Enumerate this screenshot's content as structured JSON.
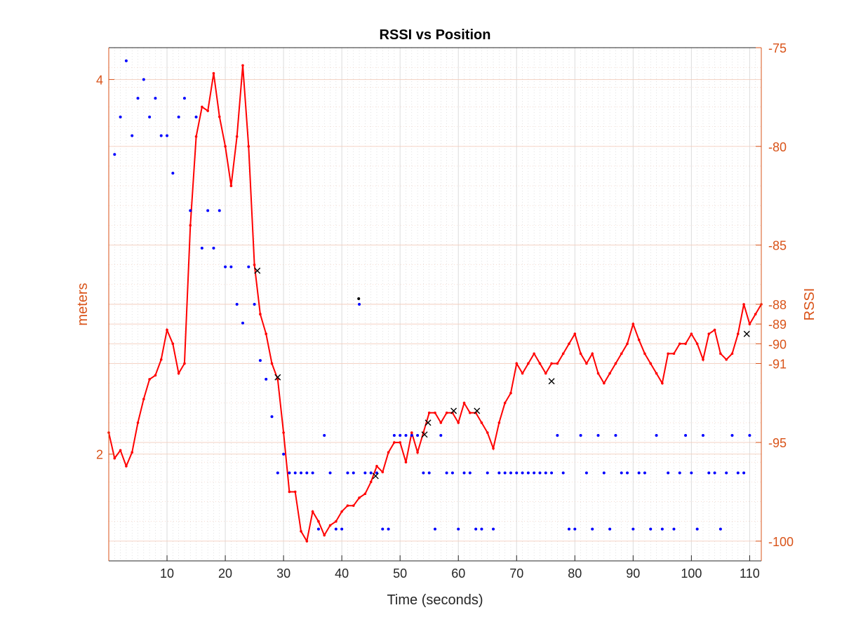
{
  "chart_data": {
    "type": "line",
    "title": "RSSI vs Position",
    "xlabel": "Time (seconds)",
    "ylabel_left": "meters",
    "ylabel_right": "RSSI",
    "xlim": [
      0,
      112
    ],
    "x_ticks": [
      "10",
      "20",
      "30",
      "40",
      "50",
      "60",
      "70",
      "80",
      "90",
      "100",
      "110"
    ],
    "y_left_lim": [
      1.43,
      4.17
    ],
    "y_left_ticks": [
      "2",
      "4"
    ],
    "y_right_lim": [
      -101,
      -75
    ],
    "y_right_ticks": [
      "-75",
      "-80",
      "-85",
      "-88",
      "-89",
      "-90",
      "-91",
      "-95",
      "-100"
    ],
    "grid": true,
    "colors": {
      "axis_right": "#d95319",
      "axis_left": "#d95319",
      "rssi_line": "#ff0000",
      "position_dots": "#0000ff",
      "markers": "#000000"
    },
    "series": [
      {
        "axis": "right",
        "style": "line-dots",
        "x": [
          0,
          1,
          2,
          3,
          4,
          5,
          6,
          7,
          8,
          9,
          10,
          11,
          12,
          13,
          14,
          15,
          16,
          17,
          18,
          19,
          20,
          21,
          22,
          23,
          24,
          25,
          26,
          27,
          28,
          29,
          30,
          31,
          32,
          33,
          34,
          35,
          36,
          37,
          38,
          39,
          40,
          41,
          42,
          43,
          44,
          45,
          46,
          47,
          48,
          49,
          50,
          51,
          52,
          53,
          54,
          55,
          56,
          57,
          58,
          59,
          60,
          61,
          62,
          63,
          64,
          65,
          66,
          67,
          68,
          69,
          70,
          71,
          72,
          73,
          74,
          75,
          76,
          77,
          78,
          79,
          80,
          81,
          82,
          83,
          84,
          85,
          86,
          87,
          88,
          89,
          90,
          91,
          92,
          93,
          94,
          95,
          96,
          97,
          98,
          99,
          100,
          101,
          102,
          103,
          104,
          105,
          106,
          107,
          108,
          109,
          110,
          111,
          112
        ],
        "values": [
          -94.5,
          -95.8,
          -95.4,
          -96.2,
          -95.5,
          -94.0,
          -92.8,
          -91.8,
          -91.6,
          -90.8,
          -89.3,
          -90.0,
          -91.5,
          -91.0,
          -84.0,
          -79.5,
          -78.0,
          -78.2,
          -76.3,
          -78.5,
          -80.0,
          -82.0,
          -79.5,
          -75.9,
          -80.0,
          -86.0,
          -88.5,
          -89.5,
          -91.0,
          -91.8,
          -94.5,
          -97.5,
          -97.5,
          -99.5,
          -100.0,
          -98.5,
          -99.0,
          -99.7,
          -99.2,
          -99.0,
          -98.5,
          -98.2,
          -98.2,
          -97.8,
          -97.6,
          -97.0,
          -96.2,
          -96.5,
          -95.5,
          -95.0,
          -95.0,
          -96.0,
          -94.5,
          -95.5,
          -94.5,
          -93.5,
          -93.5,
          -94.0,
          -93.5,
          -93.5,
          -94.0,
          -93.0,
          -93.5,
          -93.5,
          -94.0,
          -94.5,
          -95.3,
          -94.0,
          -93.0,
          -92.5,
          -91.0,
          -91.5,
          -91.0,
          -90.5,
          -91.0,
          -91.5,
          -91.0,
          -91.0,
          -90.5,
          -90.0,
          -89.5,
          -90.5,
          -91.0,
          -90.5,
          -91.5,
          -92.0,
          -91.5,
          -91.0,
          -90.5,
          -90.0,
          -89.0,
          -89.8,
          -90.5,
          -91.0,
          -91.5,
          -92.0,
          -90.5,
          -90.5,
          -90.0,
          -90.0,
          -89.5,
          -90.0,
          -90.8,
          -89.5,
          -89.3,
          -90.5,
          -90.8,
          -90.5,
          -89.5,
          -88.0,
          -89.0,
          -88.5,
          -88.0
        ]
      },
      {
        "axis": "left",
        "style": "dots",
        "x": [
          1,
          2,
          3,
          4,
          5,
          6,
          7,
          8,
          9,
          10,
          11,
          12,
          13,
          14,
          15,
          16,
          17,
          18,
          19,
          20,
          21,
          22,
          23,
          24,
          25,
          26,
          27,
          28,
          29,
          30,
          31,
          32,
          33,
          34,
          35,
          36,
          37,
          38,
          39,
          40,
          41,
          42,
          43,
          44,
          45,
          46,
          47,
          48,
          49,
          50,
          51,
          52,
          53,
          54,
          55,
          56,
          57,
          58,
          59,
          60,
          61,
          62,
          63,
          64,
          65,
          66,
          67,
          68,
          69,
          70,
          71,
          72,
          73,
          74,
          75,
          76,
          77,
          78,
          79,
          80,
          81,
          82,
          83,
          84,
          85,
          86,
          87,
          88,
          89,
          90,
          91,
          92,
          93,
          94,
          95,
          96,
          97,
          98,
          99,
          100,
          101,
          102,
          103,
          104,
          105,
          106,
          107,
          108,
          109,
          110
        ],
        "values": [
          3.6,
          3.8,
          4.1,
          3.7,
          3.9,
          4.0,
          3.8,
          3.9,
          3.7,
          3.7,
          3.5,
          3.8,
          3.9,
          3.3,
          3.8,
          3.1,
          3.3,
          3.1,
          3.3,
          3.0,
          3.0,
          2.8,
          2.7,
          3.0,
          2.8,
          2.5,
          2.4,
          2.2,
          1.9,
          2.0,
          1.9,
          1.9,
          1.9,
          1.9,
          1.9,
          1.6,
          2.1,
          1.9,
          1.6,
          1.6,
          1.9,
          1.9,
          2.8,
          1.9,
          1.9,
          1.9,
          1.6,
          1.6,
          2.1,
          2.1,
          2.1,
          2.1,
          2.1,
          1.9,
          1.9,
          1.6,
          2.1,
          1.9,
          1.9,
          1.6,
          1.9,
          1.9,
          1.6,
          1.6,
          1.9,
          1.6,
          1.9,
          1.9,
          1.9,
          1.9,
          1.9,
          1.9,
          1.9,
          1.9,
          1.9,
          1.9,
          2.1,
          1.9,
          1.6,
          1.6,
          2.1,
          1.9,
          1.6,
          2.1,
          1.9,
          1.6,
          2.1,
          1.9,
          1.9,
          1.6,
          1.9,
          1.9,
          1.6,
          2.1,
          1.6,
          1.9,
          1.6,
          1.9,
          2.1,
          1.9,
          1.6,
          2.1,
          1.9,
          1.9,
          1.6,
          1.9,
          2.1,
          1.9,
          1.9,
          2.1
        ]
      },
      {
        "axis": "right",
        "style": "x-markers",
        "x": [
          25.5,
          29,
          45.8,
          54.2,
          54.8,
          59.2,
          63.2,
          76,
          109.5
        ],
        "values": [
          -86.3,
          -91.7,
          -96.7,
          -94.6,
          -94.0,
          -93.4,
          -93.4,
          -91.9,
          -89.5
        ]
      },
      {
        "axis": "left",
        "style": "dot",
        "x": [
          42.9
        ],
        "values": [
          2.83
        ]
      }
    ]
  }
}
